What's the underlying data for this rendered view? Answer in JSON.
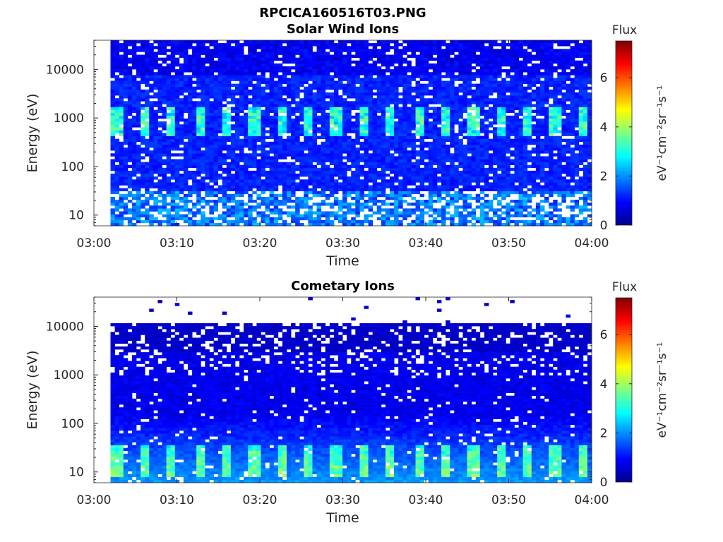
{
  "figure_title": "RPCICA160516T03.PNG",
  "chart_data": [
    {
      "type": "heatmap",
      "title": "Solar Wind Ions",
      "xlabel": "Time",
      "ylabel": "Energy (eV)",
      "x_tick_labels": [
        "03:00",
        "03:10",
        "03:20",
        "03:30",
        "03:40",
        "03:50",
        "04:00"
      ],
      "x_range": [
        "03:00",
        "04:00"
      ],
      "y_scale": "log",
      "y_ticks": [
        10,
        100,
        1000,
        10000
      ],
      "y_tick_labels": [
        "10",
        "100",
        "1000",
        "10000"
      ],
      "ylim": [
        6,
        40000
      ],
      "data_start": "03:02",
      "colorbar": {
        "title": "Flux",
        "label": "eV⁻¹cm⁻²sr⁻¹s⁻¹",
        "range": [
          0,
          7.5
        ],
        "ticks": [
          0,
          2,
          4,
          6
        ],
        "colormap": "jet"
      },
      "features": "Background ~1 across energies; periodic bright bands near 600-1500 eV reaching ~2.5-3.5 every ~3 min; sparse gaps (white) throughout"
    },
    {
      "type": "heatmap",
      "title": "Cometary Ions",
      "xlabel": "Time",
      "ylabel": "Energy (eV)",
      "x_tick_labels": [
        "03:00",
        "03:10",
        "03:20",
        "03:30",
        "03:40",
        "03:50",
        "04:00"
      ],
      "x_range": [
        "03:00",
        "04:00"
      ],
      "y_scale": "log",
      "y_ticks": [
        10,
        100,
        1000,
        10000
      ],
      "y_tick_labels": [
        "10",
        "100",
        "1000",
        "10000"
      ],
      "ylim": [
        6,
        40000
      ],
      "data_start": "03:02",
      "colorbar": {
        "title": "Flux",
        "label": "eV⁻¹cm⁻²sr⁻¹s⁻¹",
        "range": [
          0,
          7.5
        ],
        "ticks": [
          0,
          2,
          4,
          6
        ],
        "colormap": "jet"
      },
      "features": "Flux increases toward low energies; periodic bright bands near 10-30 eV reaching ~4 every ~3 min; dark blue above ~3000 eV, sparse above 11000 eV"
    }
  ]
}
